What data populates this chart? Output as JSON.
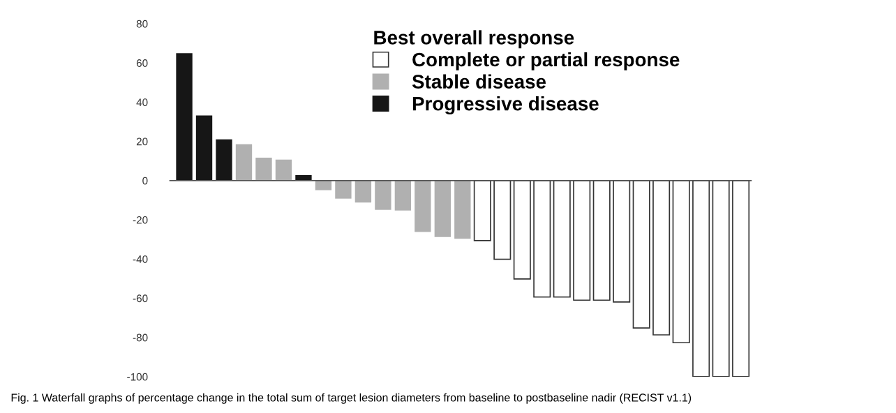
{
  "chart_data": {
    "type": "bar",
    "categories": [
      null,
      null,
      null,
      null,
      null,
      null,
      null,
      null,
      null,
      null,
      null,
      null,
      null,
      null,
      null,
      null,
      null,
      null,
      null,
      null,
      null,
      null,
      null,
      null,
      null,
      null,
      null,
      null,
      null
    ],
    "series": [
      {
        "name": "Complete or partial response",
        "color": "#ffffff",
        "values": [
          null,
          null,
          null,
          null,
          null,
          null,
          null,
          null,
          null,
          null,
          null,
          null,
          null,
          null,
          null,
          -30.6,
          -40.1,
          -50.2,
          -59.4,
          -59.4,
          -61.0,
          -61.0,
          -61.9,
          -75.2,
          -78.7,
          -82.7,
          -100,
          -100,
          -100
        ]
      },
      {
        "name": "Stable disease",
        "color": "#b0b0b0",
        "values": [
          null,
          null,
          null,
          18.5,
          11.7,
          10.7,
          null,
          -4.9,
          -9.2,
          -11.2,
          -14.9,
          -15.3,
          -26.2,
          -28.8,
          -29.7,
          null,
          null,
          null,
          null,
          null,
          null,
          null,
          null,
          null,
          null,
          null,
          null,
          null,
          null
        ]
      },
      {
        "name": "Progressive disease",
        "color": "#161616",
        "values": [
          65.0,
          33.2,
          21.0,
          null,
          null,
          null,
          2.8,
          null,
          null,
          null,
          null,
          null,
          null,
          null,
          null,
          null,
          null,
          null,
          null,
          null,
          null,
          null,
          null,
          null,
          null,
          null,
          null,
          null,
          null
        ]
      }
    ],
    "legend_title": "Best overall response",
    "legend": "top right",
    "ylim": [
      -100,
      80
    ],
    "yticks": [
      -100,
      -80,
      -60,
      -40,
      -20,
      0,
      20,
      40,
      60,
      80
    ],
    "grid": false,
    "ref_lines": [
      {
        "axis": "y",
        "value": 0,
        "color": "#555555"
      }
    ],
    "annotations": [
      "Fig. 1 Waterfall graphs of percentage change in the total sum of target lesion diameters from baseline to postbaseline nadir (RECIST v1.1)"
    ]
  }
}
